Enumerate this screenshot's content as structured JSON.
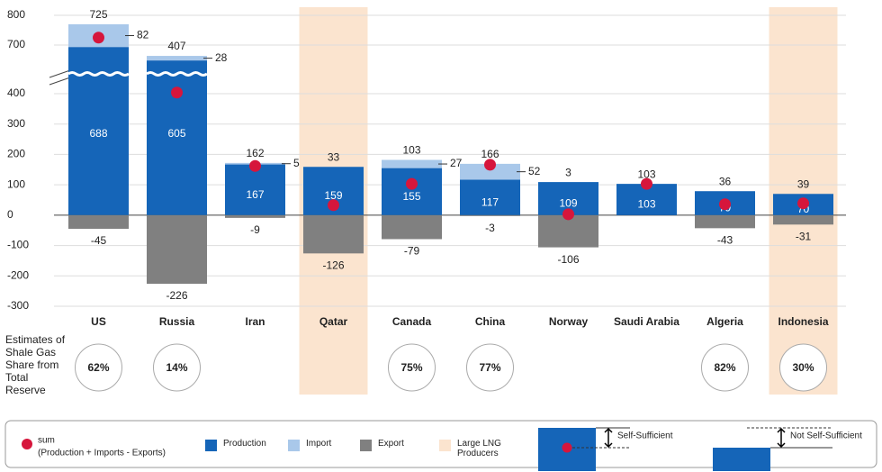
{
  "chart_data": {
    "type": "bar",
    "categories": [
      "US",
      "Russia",
      "Iran",
      "Qatar",
      "Canada",
      "China",
      "Norway",
      "Saudi Arabia",
      "Algeria",
      "Indonesia"
    ],
    "series": [
      {
        "name": "Production",
        "color": "#1565b8",
        "values": [
          688,
          605,
          167,
          159,
          155,
          117,
          109,
          103,
          79,
          70
        ]
      },
      {
        "name": "Import",
        "color": "#a9c8ea",
        "values": [
          82,
          28,
          5,
          null,
          27,
          52,
          null,
          null,
          null,
          null
        ]
      },
      {
        "name": "Export",
        "color": "#808080",
        "values": [
          -45,
          -226,
          -9,
          -126,
          -79,
          -3,
          -106,
          null,
          -43,
          -31
        ]
      }
    ],
    "sum": {
      "name": "sum",
      "note": "(Production + Imports - Exports)",
      "color": "#d6163c",
      "values": [
        725,
        407,
        162,
        33,
        103,
        166,
        3,
        103,
        36,
        39
      ]
    },
    "highlight": {
      "name": "Large LNG Producers",
      "color": "#fbe4cf",
      "values": [
        false,
        false,
        false,
        true,
        false,
        false,
        false,
        false,
        false,
        true
      ]
    },
    "shale": {
      "label": "Estimates of Shale Gas Share from Total Reserve",
      "values": [
        62,
        14,
        null,
        null,
        75,
        77,
        null,
        null,
        82,
        30
      ],
      "value_labels": [
        "62%",
        "14%",
        null,
        null,
        "75%",
        "77%",
        null,
        null,
        "82%",
        "30%"
      ]
    },
    "ylim": [
      -300,
      800
    ],
    "y_break": [
      400,
      700
    ],
    "yticks": [
      -300,
      -200,
      -100,
      0,
      100,
      200,
      300,
      400,
      700,
      800
    ],
    "grid": true,
    "key": {
      "self_sufficient": "Self-Sufficient",
      "not_self_sufficient": "Not Self-Sufficient"
    }
  }
}
